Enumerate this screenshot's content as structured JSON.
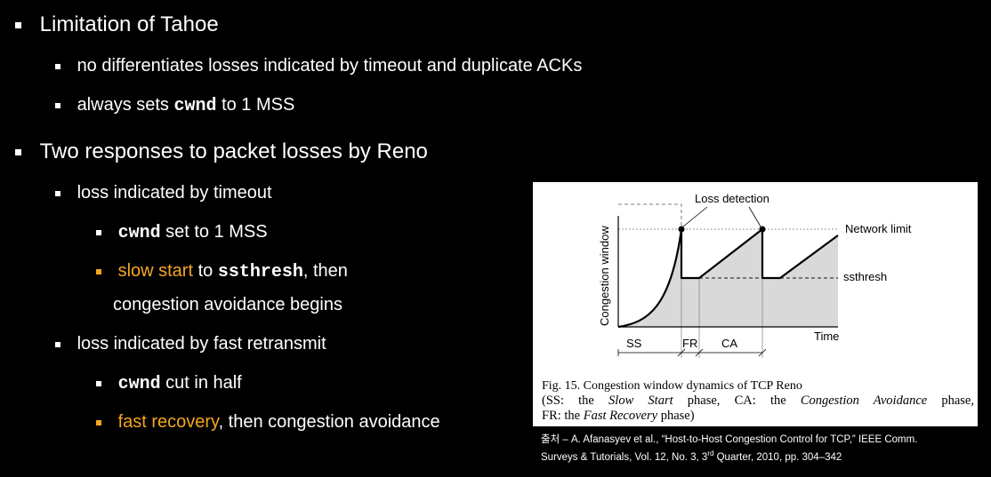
{
  "slide": {
    "bullets": {
      "tahoe_heading": "Limitation of Tahoe",
      "tahoe_point1": "no differentiates losses indicated by timeout and duplicate ACKs",
      "tahoe_point2_pre": "always sets ",
      "tahoe_point2_code": "cwnd",
      "tahoe_point2_post": " to 1 MSS",
      "reno_heading": "Two responses to packet losses by Reno",
      "timeout_heading": "loss indicated by timeout",
      "timeout_code": "cwnd",
      "timeout_post": " set to 1 MSS",
      "slowstart_highlight": "slow start",
      "slowstart_mid": " to ",
      "slowstart_code": "ssthresh",
      "slowstart_post": ", then",
      "slowstart_line2": "congestion avoidance begins",
      "fastretx_heading": "loss indicated by fast retransmit",
      "half_code": "cwnd",
      "half_post": " cut in half",
      "fastrec_highlight": "fast recovery",
      "fastrec_post": ", then congestion avoidance"
    },
    "colors": {
      "background": "#000000",
      "text": "#ffffff",
      "highlight": "#f5a623"
    }
  },
  "figure": {
    "labels": {
      "loss_detection": "Loss detection",
      "network_limit": "Network limit",
      "ssthresh": "ssthresh",
      "y_axis": "Congestion window",
      "x_axis": "Time",
      "ss": "SS",
      "fr": "FR",
      "ca": "CA"
    },
    "caption": {
      "line1": "Fig. 15.   Congestion window dynamics of TCP Reno",
      "p1": "(SS: the ",
      "i1": "Slow Start",
      "p2": " phase, CA: the ",
      "i2": "Congestion Avoidance",
      "p3": " phase,",
      "p4": "FR: the ",
      "i3": "Fast Recovery",
      "p5": " phase)"
    }
  },
  "source": {
    "line1": "출처 – A. Afanasyev et al., “Host-to-Host Congestion Control for TCP,” IEEE Comm.",
    "line2a": "Surveys & Tutorials, Vol. 12, No. 3, 3",
    "line2sup": "rd",
    "line2b": " Quarter, 2010, pp. 304–342"
  }
}
